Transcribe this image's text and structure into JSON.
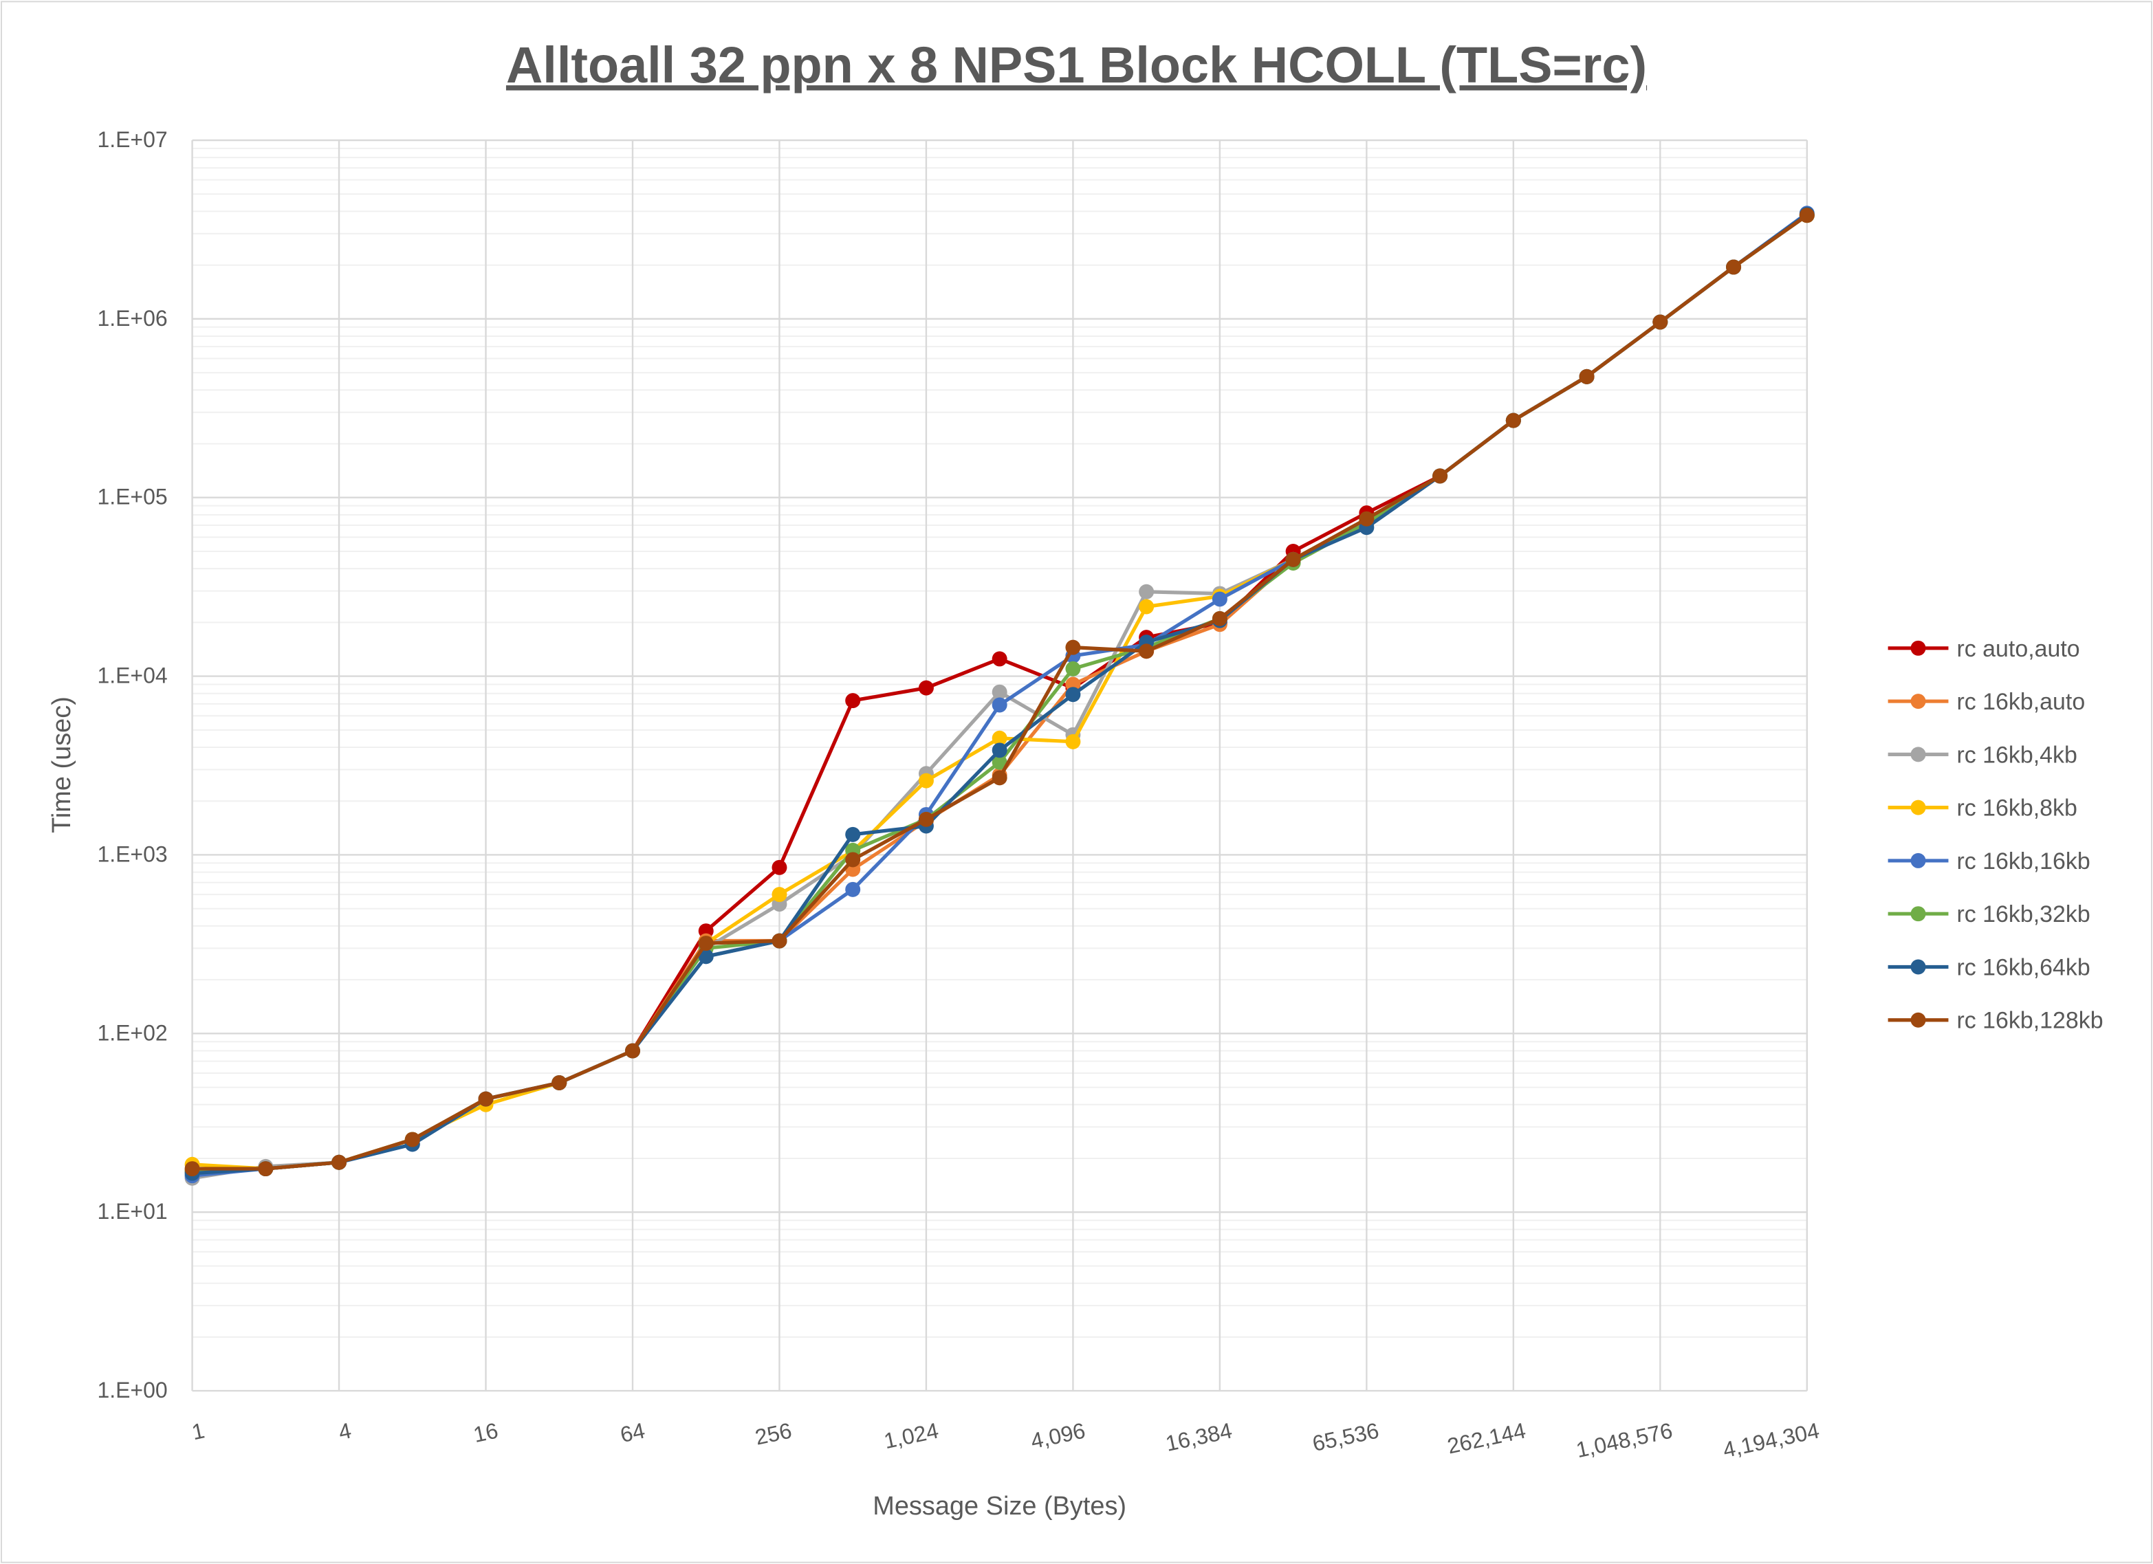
{
  "chart_data": {
    "type": "line",
    "title": "Alltoall 32 ppn x 8 NPS1 Block HCOLL (TLS=rc)",
    "xlabel": "Message Size (Bytes)",
    "ylabel": "Time (usec)",
    "x_scale": "log2",
    "y_scale": "log10",
    "xlim": [
      1,
      4194304
    ],
    "ylim": [
      1,
      10000000
    ],
    "grid": true,
    "legend_position": "right",
    "x": [
      1,
      2,
      4,
      8,
      16,
      32,
      64,
      128,
      256,
      512,
      1024,
      2048,
      4096,
      8192,
      16384,
      32768,
      65536,
      131072,
      262144,
      524288,
      1048576,
      2097152,
      4194304
    ],
    "x_tick_labels": [
      "1",
      "4",
      "16",
      "64",
      "256",
      "1,024",
      "4,096",
      "16,384",
      "65,536",
      "262,144",
      "1,048,576",
      "4,194,304"
    ],
    "y_tick_labels": [
      "1.E+00",
      "1.E+01",
      "1.E+02",
      "1.E+03",
      "1.E+04",
      "1.E+05",
      "1.E+06",
      "1.E+07"
    ],
    "series": [
      {
        "name": "rc auto,auto",
        "color": "#C00000",
        "values": [
          17,
          17.5,
          19,
          25.5,
          43,
          53,
          80,
          375,
          850,
          7300,
          8600,
          12500,
          8600,
          16500,
          19800,
          50000,
          82000,
          132000,
          270000,
          475000,
          960000,
          1950000,
          3800000
        ]
      },
      {
        "name": "rc 16kb,auto",
        "color": "#ED7D31",
        "values": [
          17,
          17.5,
          19,
          25.5,
          43,
          53,
          80,
          330,
          330,
          830,
          1550,
          2800,
          9000,
          13800,
          19500,
          45000,
          74000,
          132000,
          270000,
          475000,
          960000,
          1950000,
          3800000
        ]
      },
      {
        "name": "rc 16kb,4kb",
        "color": "#A5A5A5",
        "values": [
          15.5,
          18,
          19,
          25.5,
          43,
          53,
          80,
          300,
          530,
          1000,
          2850,
          8150,
          4700,
          29700,
          29000,
          45000,
          74000,
          132000,
          270000,
          475000,
          960000,
          1950000,
          3800000
        ]
      },
      {
        "name": "rc 16kb,8kb",
        "color": "#FFC000",
        "values": [
          18.5,
          17.5,
          19,
          25.5,
          40,
          53,
          80,
          320,
          600,
          1050,
          2600,
          4500,
          4300,
          24500,
          28000,
          45000,
          74000,
          132000,
          270000,
          475000,
          960000,
          1950000,
          3800000
        ]
      },
      {
        "name": "rc 16kb,16kb",
        "color": "#4472C4",
        "values": [
          16,
          17.5,
          19,
          24,
          43,
          53,
          80,
          270,
          330,
          640,
          1680,
          6900,
          13000,
          15000,
          27000,
          45000,
          72000,
          132000,
          270000,
          475000,
          960000,
          1950000,
          3900000
        ]
      },
      {
        "name": "rc 16kb,32kb",
        "color": "#70AD47",
        "values": [
          17,
          17.5,
          19,
          25.5,
          43,
          53,
          80,
          300,
          330,
          1060,
          1580,
          3300,
          11000,
          14500,
          21000,
          43000,
          72000,
          132000,
          270000,
          475000,
          960000,
          1950000,
          3800000
        ]
      },
      {
        "name": "rc 16kb,64kb",
        "color": "#255E91",
        "values": [
          16.5,
          17.5,
          19,
          24,
          43,
          53,
          80,
          270,
          330,
          1300,
          1450,
          3850,
          7900,
          15500,
          20500,
          45000,
          68000,
          132000,
          270000,
          475000,
          960000,
          1950000,
          3850000
        ]
      },
      {
        "name": "rc 16kb,128kb",
        "color": "#9E480E",
        "values": [
          17.5,
          17.5,
          19,
          25.5,
          43,
          53,
          80,
          320,
          330,
          940,
          1580,
          2700,
          14500,
          13800,
          21000,
          45000,
          76000,
          132000,
          270000,
          475000,
          960000,
          1950000,
          3800000
        ]
      }
    ]
  }
}
